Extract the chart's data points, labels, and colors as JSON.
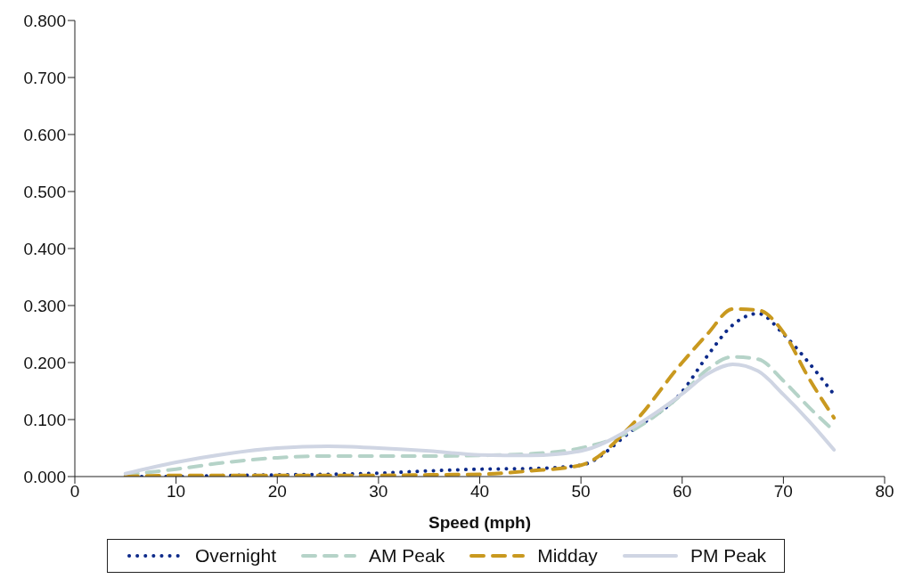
{
  "chart_data": {
    "type": "line",
    "xlabel": "Speed (mph)",
    "x": [
      5,
      10,
      15,
      20,
      25,
      30,
      35,
      40,
      45,
      50,
      55,
      60,
      62.5,
      65,
      67.5,
      70,
      72.5,
      75
    ],
    "xlim": [
      0,
      80
    ],
    "xticks": [
      0,
      10,
      20,
      30,
      40,
      50,
      60,
      70,
      80
    ],
    "ylim": [
      0,
      0.8
    ],
    "yticks": [
      {
        "value": 0,
        "label": "0.000"
      },
      {
        "value": 0.1,
        "label": "0.100"
      },
      {
        "value": 0.2,
        "label": "0.200"
      },
      {
        "value": 0.3,
        "label": "0.300"
      },
      {
        "value": 0.4,
        "label": "0.400"
      },
      {
        "value": 0.5,
        "label": "0.500"
      },
      {
        "value": 0.6,
        "label": "0.600"
      },
      {
        "value": 0.7,
        "label": "0.700"
      },
      {
        "value": 0.8,
        "label": "0.800"
      }
    ],
    "grid": false,
    "legend": "bottom",
    "marker": "none",
    "series": [
      {
        "name": "Overnight",
        "color": "#0d2a8a",
        "line_style": "dotted",
        "values": [
          0,
          0,
          0.002,
          0.003,
          0.004,
          0.006,
          0.01,
          0.013,
          0.014,
          0.02,
          0.08,
          0.149,
          0.212,
          0.266,
          0.286,
          0.25,
          0.2,
          0.144
        ]
      },
      {
        "name": "AM Peak",
        "color": "#b5d3c8",
        "line_style": "dashed",
        "values": [
          0.003,
          0.013,
          0.025,
          0.033,
          0.036,
          0.036,
          0.036,
          0.037,
          0.04,
          0.05,
          0.08,
          0.145,
          0.188,
          0.21,
          0.206,
          0.168,
          0.122,
          0.08
        ]
      },
      {
        "name": "Midday",
        "color": "#c9991f",
        "line_style": "dashed",
        "values": [
          0,
          0.002,
          0.002,
          0.002,
          0.002,
          0.002,
          0.003,
          0.004,
          0.01,
          0.02,
          0.09,
          0.2,
          0.25,
          0.294,
          0.292,
          0.253,
          0.173,
          0.103
        ]
      },
      {
        "name": "PM Peak",
        "color": "#cfd5e3",
        "line_style": "solid",
        "values": [
          0.005,
          0.025,
          0.04,
          0.05,
          0.053,
          0.05,
          0.045,
          0.038,
          0.037,
          0.045,
          0.085,
          0.145,
          0.18,
          0.197,
          0.185,
          0.144,
          0.098,
          0.047
        ]
      }
    ]
  }
}
